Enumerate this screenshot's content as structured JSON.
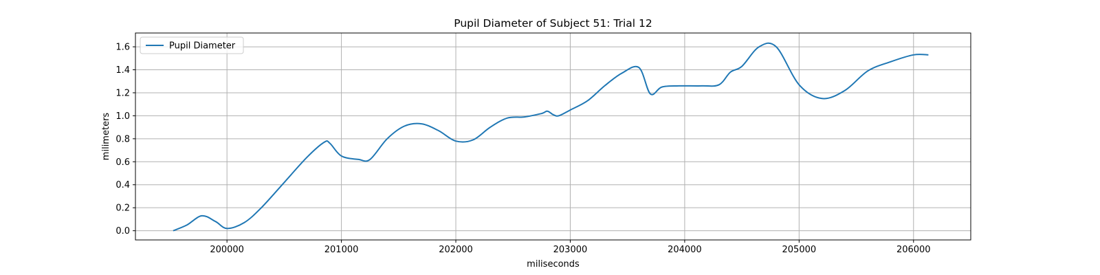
{
  "chart_data": {
    "type": "line",
    "title": "Pupil Diameter of Subject 51: Trial 12",
    "xlabel": "miliseconds",
    "ylabel": "milimeters",
    "xlim": [
      199200,
      206500
    ],
    "ylim": [
      -0.08,
      1.72
    ],
    "xticks": [
      200000,
      201000,
      202000,
      203000,
      204000,
      205000,
      206000
    ],
    "yticks": [
      0.0,
      0.2,
      0.4,
      0.6,
      0.8,
      1.0,
      1.2,
      1.4,
      1.6
    ],
    "xtick_labels": [
      "200000",
      "201000",
      "202000",
      "203000",
      "204000",
      "205000",
      "206000"
    ],
    "ytick_labels": [
      "0.0",
      "0.2",
      "0.4",
      "0.6",
      "0.8",
      "1.0",
      "1.2",
      "1.4",
      "1.6"
    ],
    "grid": true,
    "legend": "upper left",
    "series": [
      {
        "name": "Pupil Diameter",
        "color": "#1f77b4",
        "x": [
          199530,
          199650,
          199780,
          199900,
          200000,
          200150,
          200300,
          200500,
          200700,
          200850,
          200900,
          201000,
          201150,
          201250,
          201400,
          201550,
          201700,
          201850,
          202000,
          202150,
          202300,
          202450,
          202600,
          202750,
          202800,
          202850,
          202900,
          203000,
          203150,
          203300,
          203450,
          203600,
          203700,
          203800,
          203950,
          204150,
          204300,
          204400,
          204500,
          204650,
          204800,
          205000,
          205200,
          205400,
          205600,
          205800,
          206000,
          206130
        ],
        "y": [
          0.0,
          0.05,
          0.13,
          0.08,
          0.02,
          0.07,
          0.2,
          0.42,
          0.64,
          0.77,
          0.76,
          0.65,
          0.62,
          0.62,
          0.8,
          0.91,
          0.93,
          0.87,
          0.78,
          0.79,
          0.9,
          0.98,
          0.99,
          1.02,
          1.04,
          1.01,
          1.0,
          1.05,
          1.13,
          1.26,
          1.37,
          1.42,
          1.19,
          1.25,
          1.26,
          1.26,
          1.27,
          1.38,
          1.43,
          1.6,
          1.6,
          1.27,
          1.15,
          1.22,
          1.39,
          1.47,
          1.53,
          1.53
        ]
      }
    ]
  }
}
